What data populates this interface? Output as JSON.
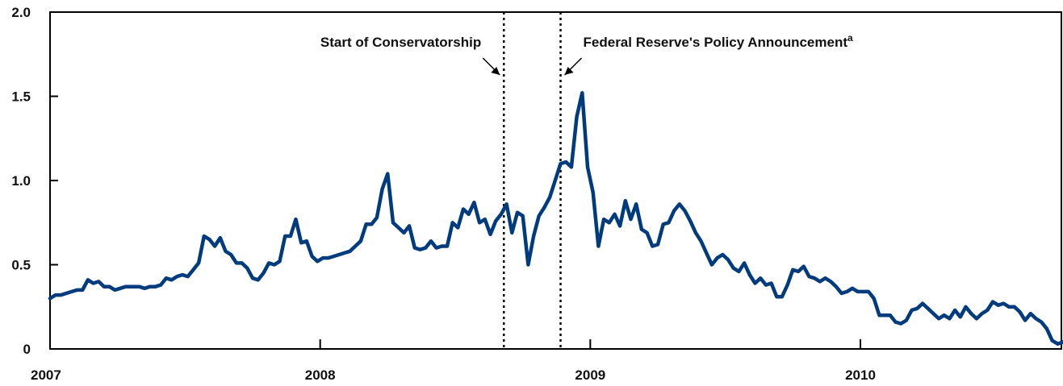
{
  "chart_data": {
    "type": "line",
    "title": "",
    "xlabel": "",
    "ylabel": "",
    "xlim": [
      2007.0,
      2010.75
    ],
    "ylim": [
      0,
      2.0
    ],
    "y_ticks": [
      0,
      0.5,
      1.0,
      1.5,
      2.0
    ],
    "y_tick_labels": [
      "0",
      "0.5",
      "1.0",
      "1.5",
      "2.0"
    ],
    "x_ticks": [
      2007,
      2008,
      2009,
      2010
    ],
    "x_tick_labels": [
      "2007",
      "2008",
      "2009",
      "2010"
    ],
    "grid": false,
    "legend": "none",
    "series": [
      {
        "color": "#003b7d",
        "points": [
          [
            2007.0,
            0.3
          ],
          [
            2007.02,
            0.32
          ],
          [
            2007.04,
            0.32
          ],
          [
            2007.06,
            0.33
          ],
          [
            2007.08,
            0.34
          ],
          [
            2007.1,
            0.35
          ],
          [
            2007.12,
            0.35
          ],
          [
            2007.14,
            0.41
          ],
          [
            2007.16,
            0.39
          ],
          [
            2007.18,
            0.4
          ],
          [
            2007.2,
            0.37
          ],
          [
            2007.22,
            0.37
          ],
          [
            2007.24,
            0.35
          ],
          [
            2007.26,
            0.36
          ],
          [
            2007.28,
            0.37
          ],
          [
            2007.3,
            0.37
          ],
          [
            2007.33,
            0.37
          ],
          [
            2007.35,
            0.36
          ],
          [
            2007.37,
            0.37
          ],
          [
            2007.39,
            0.37
          ],
          [
            2007.41,
            0.38
          ],
          [
            2007.43,
            0.42
          ],
          [
            2007.45,
            0.41
          ],
          [
            2007.47,
            0.43
          ],
          [
            2007.49,
            0.44
          ],
          [
            2007.51,
            0.43
          ],
          [
            2007.53,
            0.47
          ],
          [
            2007.55,
            0.51
          ],
          [
            2007.57,
            0.67
          ],
          [
            2007.59,
            0.65
          ],
          [
            2007.61,
            0.61
          ],
          [
            2007.63,
            0.66
          ],
          [
            2007.65,
            0.58
          ],
          [
            2007.67,
            0.56
          ],
          [
            2007.69,
            0.51
          ],
          [
            2007.71,
            0.51
          ],
          [
            2007.73,
            0.48
          ],
          [
            2007.75,
            0.42
          ],
          [
            2007.77,
            0.41
          ],
          [
            2007.79,
            0.45
          ],
          [
            2007.81,
            0.51
          ],
          [
            2007.83,
            0.5
          ],
          [
            2007.85,
            0.52
          ],
          [
            2007.87,
            0.67
          ],
          [
            2007.89,
            0.67
          ],
          [
            2007.91,
            0.77
          ],
          [
            2007.93,
            0.63
          ],
          [
            2007.95,
            0.64
          ],
          [
            2007.97,
            0.55
          ],
          [
            2007.99,
            0.52
          ],
          [
            2008.01,
            0.54
          ],
          [
            2008.03,
            0.54
          ],
          [
            2008.05,
            0.55
          ],
          [
            2008.07,
            0.56
          ],
          [
            2008.09,
            0.57
          ],
          [
            2008.11,
            0.58
          ],
          [
            2008.13,
            0.61
          ],
          [
            2008.15,
            0.64
          ],
          [
            2008.17,
            0.74
          ],
          [
            2008.19,
            0.74
          ],
          [
            2008.21,
            0.78
          ],
          [
            2008.23,
            0.95
          ],
          [
            2008.25,
            1.04
          ],
          [
            2008.27,
            0.75
          ],
          [
            2008.29,
            0.72
          ],
          [
            2008.31,
            0.69
          ],
          [
            2008.33,
            0.73
          ],
          [
            2008.35,
            0.6
          ],
          [
            2008.37,
            0.59
          ],
          [
            2008.39,
            0.6
          ],
          [
            2008.41,
            0.64
          ],
          [
            2008.43,
            0.6
          ],
          [
            2008.45,
            0.61
          ],
          [
            2008.47,
            0.61
          ],
          [
            2008.49,
            0.75
          ],
          [
            2008.51,
            0.72
          ],
          [
            2008.53,
            0.83
          ],
          [
            2008.55,
            0.8
          ],
          [
            2008.57,
            0.87
          ],
          [
            2008.59,
            0.75
          ],
          [
            2008.61,
            0.77
          ],
          [
            2008.63,
            0.68
          ],
          [
            2008.65,
            0.76
          ],
          [
            2008.67,
            0.8
          ],
          [
            2008.69,
            0.86
          ],
          [
            2008.71,
            0.69
          ],
          [
            2008.73,
            0.81
          ],
          [
            2008.75,
            0.79
          ],
          [
            2008.77,
            0.5
          ],
          [
            2008.79,
            0.67
          ],
          [
            2008.81,
            0.79
          ],
          [
            2008.83,
            0.84
          ],
          [
            2008.85,
            0.9
          ],
          [
            2008.87,
            1.0
          ],
          [
            2008.89,
            1.1
          ],
          [
            2008.91,
            1.11
          ],
          [
            2008.93,
            1.08
          ],
          [
            2008.95,
            1.38
          ],
          [
            2008.97,
            1.52
          ],
          [
            2008.99,
            1.08
          ],
          [
            2009.01,
            0.93
          ],
          [
            2009.03,
            0.61
          ],
          [
            2009.05,
            0.77
          ],
          [
            2009.07,
            0.75
          ],
          [
            2009.09,
            0.8
          ],
          [
            2009.11,
            0.73
          ],
          [
            2009.13,
            0.88
          ],
          [
            2009.15,
            0.77
          ],
          [
            2009.17,
            0.86
          ],
          [
            2009.19,
            0.71
          ],
          [
            2009.21,
            0.69
          ],
          [
            2009.23,
            0.61
          ],
          [
            2009.25,
            0.62
          ],
          [
            2009.27,
            0.74
          ],
          [
            2009.29,
            0.75
          ],
          [
            2009.31,
            0.82
          ],
          [
            2009.33,
            0.86
          ],
          [
            2009.35,
            0.82
          ],
          [
            2009.37,
            0.76
          ],
          [
            2009.39,
            0.69
          ],
          [
            2009.41,
            0.64
          ],
          [
            2009.43,
            0.57
          ],
          [
            2009.45,
            0.5
          ],
          [
            2009.47,
            0.54
          ],
          [
            2009.49,
            0.56
          ],
          [
            2009.51,
            0.53
          ],
          [
            2009.53,
            0.48
          ],
          [
            2009.55,
            0.46
          ],
          [
            2009.57,
            0.51
          ],
          [
            2009.59,
            0.44
          ],
          [
            2009.61,
            0.39
          ],
          [
            2009.63,
            0.42
          ],
          [
            2009.65,
            0.38
          ],
          [
            2009.67,
            0.39
          ],
          [
            2009.69,
            0.31
          ],
          [
            2009.71,
            0.31
          ],
          [
            2009.73,
            0.38
          ],
          [
            2009.75,
            0.47
          ],
          [
            2009.77,
            0.46
          ],
          [
            2009.79,
            0.49
          ],
          [
            2009.81,
            0.43
          ],
          [
            2009.83,
            0.42
          ],
          [
            2009.85,
            0.4
          ],
          [
            2009.87,
            0.42
          ],
          [
            2009.89,
            0.4
          ],
          [
            2009.91,
            0.37
          ],
          [
            2009.93,
            0.33
          ],
          [
            2009.95,
            0.34
          ],
          [
            2009.97,
            0.36
          ],
          [
            2009.99,
            0.34
          ],
          [
            2010.01,
            0.34
          ],
          [
            2010.03,
            0.34
          ],
          [
            2010.05,
            0.3
          ],
          [
            2010.07,
            0.2
          ],
          [
            2010.09,
            0.2
          ],
          [
            2010.11,
            0.2
          ],
          [
            2010.13,
            0.16
          ],
          [
            2010.15,
            0.15
          ],
          [
            2010.17,
            0.17
          ],
          [
            2010.19,
            0.23
          ],
          [
            2010.21,
            0.24
          ],
          [
            2010.23,
            0.27
          ],
          [
            2010.25,
            0.24
          ],
          [
            2010.27,
            0.21
          ],
          [
            2010.29,
            0.18
          ],
          [
            2010.31,
            0.2
          ],
          [
            2010.33,
            0.18
          ],
          [
            2010.35,
            0.23
          ],
          [
            2010.37,
            0.19
          ],
          [
            2010.39,
            0.25
          ],
          [
            2010.41,
            0.21
          ],
          [
            2010.43,
            0.18
          ],
          [
            2010.45,
            0.21
          ],
          [
            2010.47,
            0.23
          ],
          [
            2010.49,
            0.28
          ],
          [
            2010.51,
            0.26
          ],
          [
            2010.53,
            0.27
          ],
          [
            2010.55,
            0.25
          ],
          [
            2010.57,
            0.25
          ],
          [
            2010.59,
            0.22
          ],
          [
            2010.61,
            0.17
          ],
          [
            2010.63,
            0.21
          ],
          [
            2010.65,
            0.18
          ],
          [
            2010.67,
            0.16
          ],
          [
            2010.69,
            0.12
          ],
          [
            2010.71,
            0.05
          ],
          [
            2010.73,
            0.03
          ],
          [
            2010.75,
            0.04
          ],
          [
            2010.77,
            0.07
          ],
          [
            2010.79,
            0.11
          ],
          [
            2010.81,
            0.07
          ],
          [
            2010.83,
            0.06
          ],
          [
            2010.85,
            0.07
          ],
          [
            2010.87,
            0.07
          ],
          [
            2010.89,
            0.12
          ]
        ]
      }
    ],
    "annotations": [
      {
        "text": "Start of Conservatorship",
        "superscript": "",
        "x": 2008.68
      },
      {
        "text": "Federal Reserve's Policy Announcement",
        "superscript": "a",
        "x": 2008.89
      }
    ]
  }
}
